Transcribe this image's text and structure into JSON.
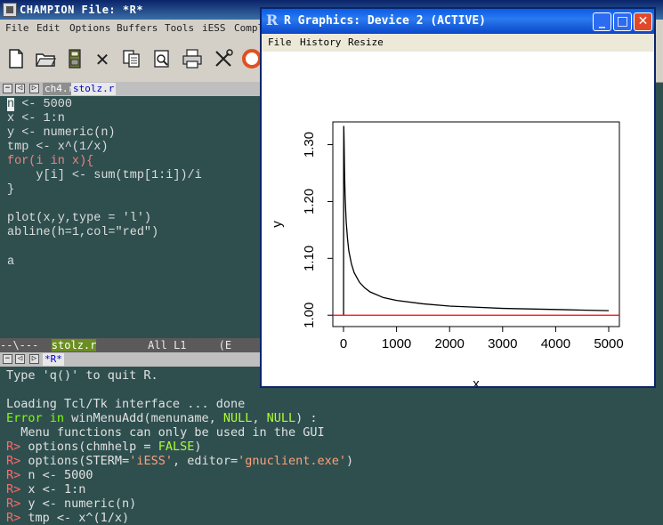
{
  "emacs": {
    "title": "CHAMPION  File: *R*",
    "menu": [
      "File",
      "Edit",
      "Options",
      "Buffers",
      "Tools",
      "iESS",
      "Compl"
    ],
    "toolbar_icons": [
      "new-file-icon",
      "open-folder-icon",
      "save-icon",
      "cut-icon",
      "copy-icon",
      "paste-icon",
      "print-icon",
      "tools-icon",
      "help-icon"
    ],
    "cut_glyph": "✕",
    "upper_tabs": {
      "inactive": "ch4.r",
      "active": "stolz.r"
    },
    "editor_lines": [
      "n <- 5000",
      "x <- 1:n",
      "y <- numeric(n)",
      "tmp <- x^(1/x)",
      "for(i in x){",
      "    y[i] <- sum(tmp[1:i])/i",
      "}",
      "",
      "plot(x,y,type = 'l')",
      "abline(h=1,col=\"red\")",
      "",
      "a"
    ],
    "modeline": {
      "left": "--\\---  ",
      "buffer": "stolz.r",
      "rest": "        All L1     (E"
    },
    "lower_tab": "*R*",
    "console": {
      "line1": "Type 'q()' to quit R.",
      "line2": "Loading Tcl/Tk interface ... done",
      "err_prefix": "Error in",
      "err_call": " winMenuAdd(menuname, ",
      "null1": "NULL",
      "sep": ", ",
      "null2": "NULL",
      "err_close": ") :",
      "err_msg": "  Menu functions can only be used in the GUI",
      "prompt": "R> ",
      "cmd1a": "options(chmhelp = ",
      "cmd1b": "FALSE",
      "cmd1c": ")",
      "cmd2a": "options(STERM=",
      "cmd2b": "'iESS'",
      "cmd2c": ", editor=",
      "cmd2d": "'gnuclient.exe'",
      "cmd2e": ")",
      "cmd3": "n <- 5000",
      "cmd4": "x <- 1:n",
      "cmd5": "y <- numeric(n)",
      "cmd6": "tmp <- x^(1/x)"
    }
  },
  "rgraphics": {
    "title": "R Graphics: Device 2 (ACTIVE)",
    "app_icon": "R",
    "menu": [
      "File",
      "History",
      "Resize"
    ],
    "buttons": {
      "minimize": "_",
      "maximize": "□",
      "close": "✕"
    }
  },
  "chart_data": {
    "type": "line",
    "title": "",
    "xlabel": "x",
    "ylabel": "y",
    "xlim": [
      1,
      5000
    ],
    "ylim": [
      0.98,
      1.34
    ],
    "x_ticks": [
      "0",
      "1000",
      "2000",
      "3000",
      "4000",
      "5000"
    ],
    "y_ticks": [
      "1.00",
      "1.10",
      "1.20",
      "1.30"
    ],
    "series": [
      {
        "color": "#000000",
        "x": [
          1,
          2,
          3,
          5,
          10,
          20,
          30,
          50,
          75,
          100,
          150,
          200,
          300,
          400,
          500,
          750,
          1000,
          1500,
          2000,
          2500,
          3000,
          3500,
          4000,
          4500,
          5000
        ],
        "y": [
          1.0,
          1.207,
          1.284,
          1.333,
          1.31,
          1.25,
          1.21,
          1.165,
          1.135,
          1.113,
          1.09,
          1.075,
          1.058,
          1.048,
          1.041,
          1.031,
          1.026,
          1.02,
          1.016,
          1.014,
          1.012,
          1.011,
          1.01,
          1.009,
          1.008
        ]
      }
    ],
    "hline": {
      "y": 1,
      "color": "#ff0000"
    },
    "grid": false
  }
}
